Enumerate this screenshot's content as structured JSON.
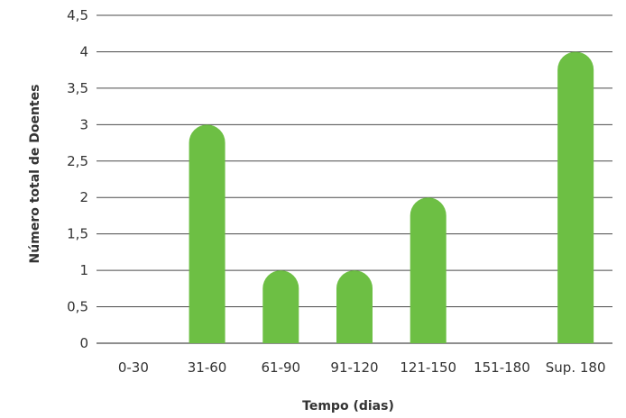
{
  "chart_data": {
    "type": "bar",
    "categories": [
      "0-30",
      "31-60",
      "61-90",
      "91-120",
      "121-150",
      "151-180",
      "Sup. 180"
    ],
    "values": [
      0,
      3,
      1,
      1,
      2,
      0,
      4
    ],
    "xlabel": "Tempo (dias)",
    "ylabel": "Número total de Doentes",
    "ylim": [
      0,
      4.5
    ],
    "yticks": [
      "0",
      "0,5",
      "1",
      "1,5",
      "2",
      "2,5",
      "3",
      "3,5",
      "4",
      "4,5"
    ],
    "grid": true,
    "legend": "none",
    "bar_color": "#6dbf44"
  }
}
